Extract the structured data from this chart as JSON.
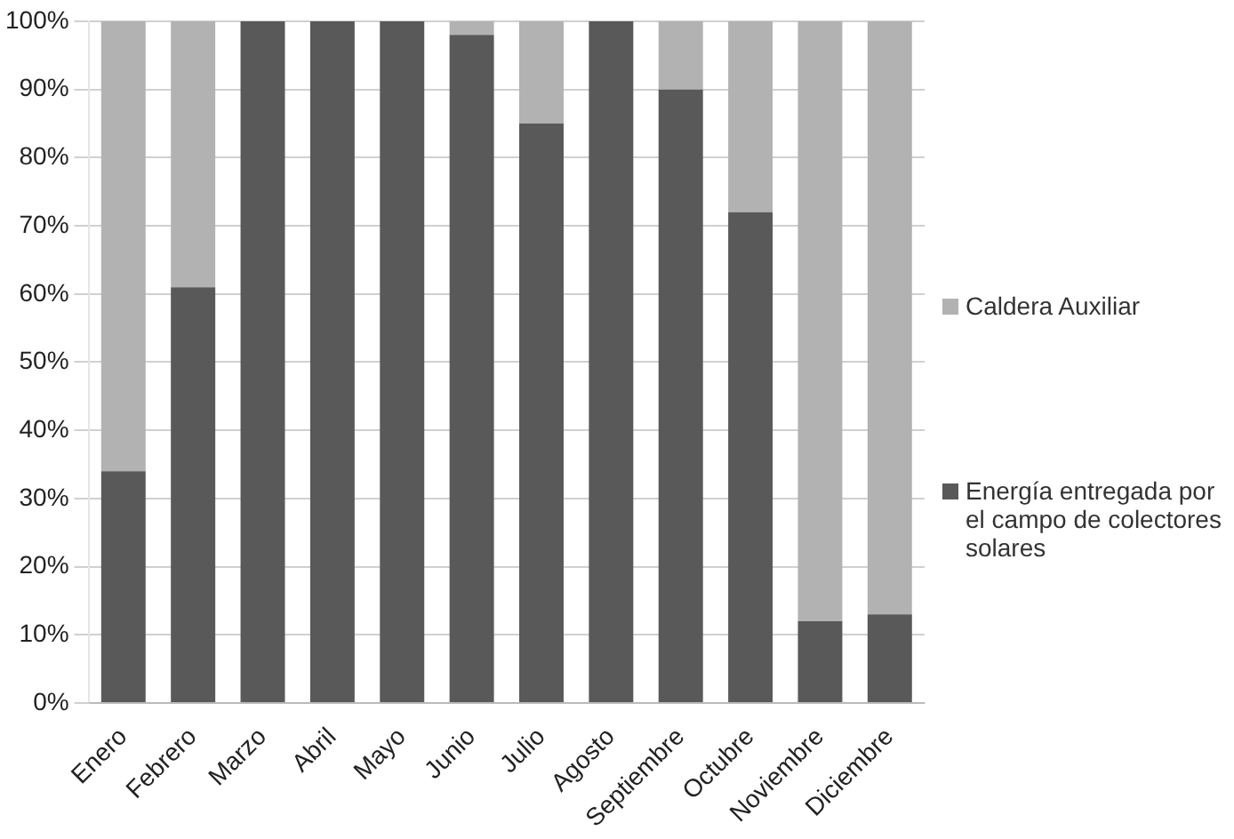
{
  "chart_data": {
    "type": "bar",
    "stacked": true,
    "categories": [
      "Enero",
      "Febrero",
      "Marzo",
      "Abril",
      "Mayo",
      "Junio",
      "Julio",
      "Agosto",
      "Septiembre",
      "Octubre",
      "Noviembre",
      "Diciembre"
    ],
    "series": [
      {
        "name": "Energía entregada por el campo de colectores solares",
        "color": "#595959",
        "values": [
          34,
          61,
          100,
          100,
          100,
          98,
          85,
          100,
          90,
          72,
          12,
          13
        ]
      },
      {
        "name": "Caldera Auxiliar",
        "color": "#b2b2b2",
        "values": [
          66,
          39,
          0,
          0,
          0,
          2,
          15,
          0,
          10,
          28,
          88,
          87
        ]
      }
    ],
    "ylim": [
      0,
      100
    ],
    "yticks": [
      {
        "value": 0,
        "label": "0%"
      },
      {
        "value": 10,
        "label": "10%"
      },
      {
        "value": 20,
        "label": "20%"
      },
      {
        "value": 30,
        "label": "30%"
      },
      {
        "value": 40,
        "label": "40%"
      },
      {
        "value": 50,
        "label": "50%"
      },
      {
        "value": 60,
        "label": "60%"
      },
      {
        "value": 70,
        "label": "70%"
      },
      {
        "value": 80,
        "label": "80%"
      },
      {
        "value": 90,
        "label": "90%"
      },
      {
        "value": 100,
        "label": "100%"
      }
    ],
    "grid": "y",
    "legend": "right"
  }
}
